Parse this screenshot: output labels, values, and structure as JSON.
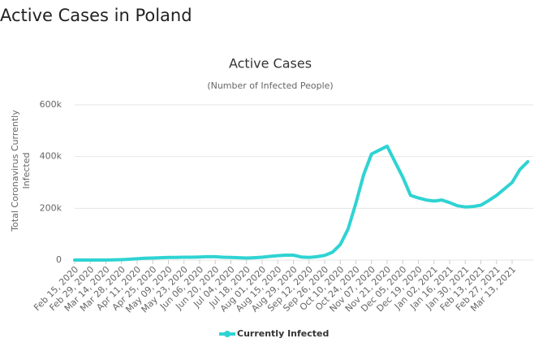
{
  "page_title": "Active Cases in Poland",
  "chart_data": {
    "type": "line",
    "title": "Active Cases",
    "subtitle": "(Number of Infected People)",
    "y_label": "Total Coronavirus Currently Infected",
    "categories": [
      "Feb 15, 2020",
      null,
      "Feb 29, 2020",
      null,
      "Mar 14, 2020",
      null,
      "Mar 28, 2020",
      null,
      "Apr 11, 2020",
      null,
      "Apr 25, 2020",
      null,
      "May 09, 2020",
      null,
      "May 23, 2020",
      null,
      "Jun 06, 2020",
      null,
      "Jun 20, 2020",
      null,
      "Jul 04, 2020",
      null,
      "Jul 18, 2020",
      null,
      "Aug 01, 2020",
      null,
      "Aug 15, 2020",
      null,
      "Aug 29, 2020",
      null,
      "Sep 12, 2020",
      null,
      "Sep 26, 2020",
      null,
      "Oct 10, 2020",
      null,
      "Oct 24, 2020",
      null,
      "Nov 07, 2020",
      null,
      "Nov 21, 2020",
      null,
      "Dec 05, 2020",
      null,
      "Dec 19, 2020",
      null,
      "Jan 02, 2021",
      null,
      "Jan 16, 2021",
      null,
      "Jan 30, 2021",
      null,
      "Feb 13, 2021",
      null,
      "Feb 27, 2021",
      null,
      "Mar 13, 2021",
      null,
      null
    ],
    "series": [
      {
        "name": "Currently Infected",
        "color": "#2fd3d3",
        "values": [
          0,
          0,
          0,
          0,
          100,
          500,
          1500,
          3000,
          5000,
          7000,
          8000,
          9000,
          10000,
          10000,
          11000,
          11000,
          12000,
          13000,
          13000,
          11000,
          10000,
          9000,
          8000,
          9000,
          11000,
          14000,
          17000,
          19000,
          19000,
          12000,
          10000,
          13000,
          18000,
          30000,
          60000,
          120000,
          220000,
          330000,
          410000,
          425000,
          440000,
          380000,
          320000,
          250000,
          240000,
          232000,
          228000,
          232000,
          222000,
          210000,
          205000,
          207000,
          212000,
          230000,
          250000,
          275000,
          300000,
          350000,
          380000
        ]
      }
    ],
    "ylim": [
      0,
      600000
    ],
    "yticks": [
      0,
      {
        "value": 200000,
        "label": "200k"
      },
      {
        "value": 400000,
        "label": "400k"
      },
      {
        "value": 600000,
        "label": "600k"
      }
    ],
    "grid": true
  }
}
